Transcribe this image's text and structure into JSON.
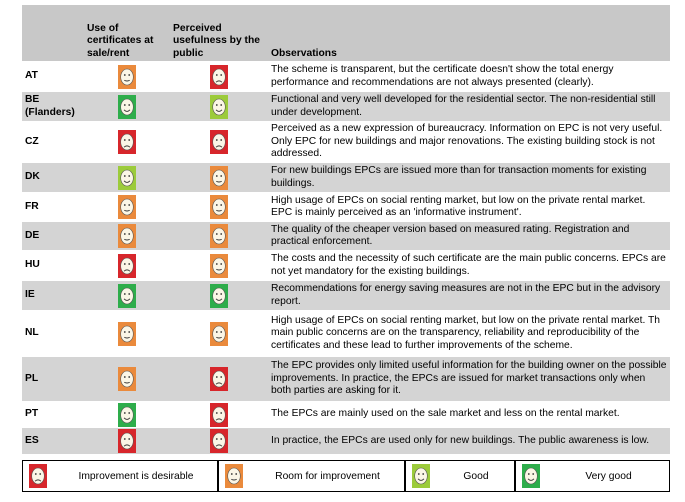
{
  "header": {
    "columns": [
      "Use of certificates at sale/rent",
      "Perceived usefulness by the public",
      "Observations"
    ]
  },
  "table": {
    "rows": [
      [
        "AT",
        "The scheme is transparent, but the certificate doesn't show the total energy performance and recommendations are not always presented (clearly)."
      ],
      [
        "BE (Flanders)",
        "Functional and very well developed for the residential sector. The non-residential still under development."
      ],
      [
        "CZ",
        "Perceived as a new expression of bureaucracy. Information on EPC is not very useful. Only EPC for new buildings and major renovations. The existing building stock is not addressed."
      ],
      [
        "DK",
        "For new buildings EPCs are issued more than for transaction moments for existing buildings."
      ],
      [
        "FR",
        "High usage of EPCs on social renting market, but low on the private rental market. EPC is mainly perceived as an 'informative instrument'."
      ],
      [
        "DE",
        "The quality of the cheaper version based on measured rating. Registration and practical enforcement."
      ],
      [
        "HU",
        "The costs and the necessity of such certificate are the main public concerns. EPCs are not yet mandatory for the existing buildings."
      ],
      [
        "IE",
        "Recommendations for energy saving measures are not in the EPC but in the advisory report."
      ],
      [
        "NL",
        "High usage of EPCs on social renting market, but low on the private rental market. Th main public concerns are on the transparency, reliability and reproducibility of the certificates and these lead to further improvements of the scheme."
      ],
      [
        "PL",
        "The EPC provides only limited useful information for the building owner on the possible improvements. In practice, the EPCs are issued for market transactions only when both parties are asking for it."
      ],
      [
        "PT",
        "The EPCs are mainly used on the sale market and less on the rental market."
      ],
      [
        "ES",
        "In practice, the EPCs are used only for new buildings. The public awareness is low."
      ]
    ]
  },
  "legend": [
    "Improvement is desirable",
    "Room for improvement",
    "Good",
    "Very good"
  ]
}
